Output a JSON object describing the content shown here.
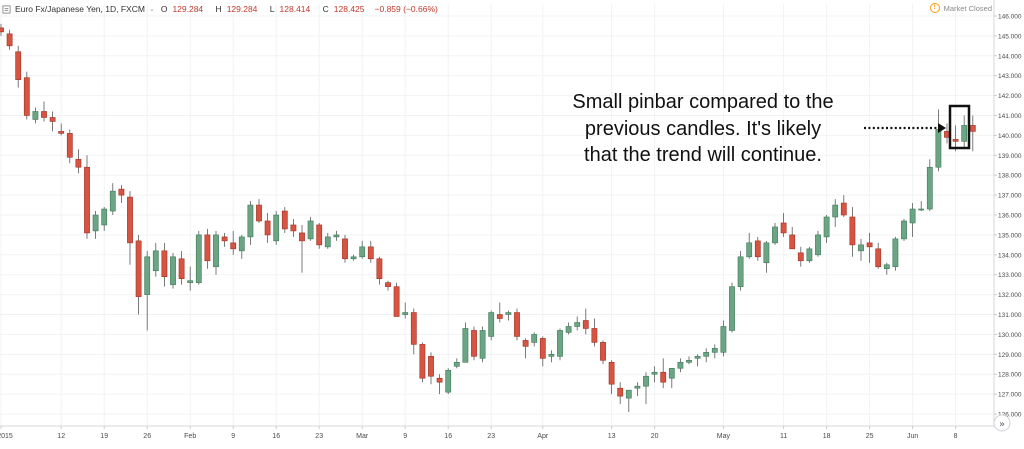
{
  "header": {
    "symbol": "Euro Fx/Japanese Yen, 1D, FXCM",
    "chevron": "⌄",
    "open_label": "O",
    "open": "129.284",
    "high_label": "H",
    "high": "129.284",
    "low_label": "L",
    "low": "128.414",
    "close_label": "C",
    "close": "128.425",
    "change": "−0.859 (−0.66%)"
  },
  "market_status": {
    "icon": "clock-icon",
    "label": "Market Closed"
  },
  "annotation": {
    "lines": [
      "Small pinbar compared to the",
      "previous candles. It's likely",
      "that the trend will continue."
    ]
  },
  "scroll_button": "»",
  "colors": {
    "up": "#6ba583",
    "down": "#d75442",
    "grid": "#f0f3f6",
    "axis_text": "#4a4a4a",
    "annotation": "#111111"
  },
  "chart_data": {
    "type": "candlestick",
    "title": "Euro Fx/Japanese Yen, 1D, FXCM",
    "ylim": [
      125.4,
      146.6
    ],
    "y_ticks": [
      "126.000",
      "127.000",
      "128.000",
      "129.000",
      "130.000",
      "131.000",
      "132.000",
      "133.000",
      "134.000",
      "135.000",
      "136.000",
      "137.000",
      "138.000",
      "139.000",
      "140.000",
      "141.000",
      "142.000",
      "143.000",
      "144.000",
      "145.000",
      "146.000"
    ],
    "x_tick_labels": [
      {
        "label": "2015",
        "i": 0
      },
      {
        "label": "12",
        "i": 7
      },
      {
        "label": "19",
        "i": 12
      },
      {
        "label": "26",
        "i": 17
      },
      {
        "label": "Feb",
        "i": 22
      },
      {
        "label": "9",
        "i": 27
      },
      {
        "label": "16",
        "i": 32
      },
      {
        "label": "23",
        "i": 37
      },
      {
        "label": "Mar",
        "i": 42
      },
      {
        "label": "9",
        "i": 47
      },
      {
        "label": "16",
        "i": 52
      },
      {
        "label": "23",
        "i": 57
      },
      {
        "label": "Apr",
        "i": 63
      },
      {
        "label": "13",
        "i": 71
      },
      {
        "label": "20",
        "i": 76
      },
      {
        "label": "May",
        "i": 84
      },
      {
        "label": "11",
        "i": 91
      },
      {
        "label": "18",
        "i": 96
      },
      {
        "label": "25",
        "i": 101
      },
      {
        "label": "Jun",
        "i": 106
      },
      {
        "label": "8",
        "i": 111
      }
    ],
    "candles": [
      [
        145.4,
        145.6,
        145.0,
        145.2
      ],
      [
        145.1,
        145.3,
        144.3,
        144.5
      ],
      [
        144.2,
        144.5,
        142.4,
        142.8
      ],
      [
        142.9,
        143.2,
        140.8,
        141.0
      ],
      [
        140.8,
        141.4,
        140.6,
        141.2
      ],
      [
        141.2,
        141.7,
        140.7,
        140.9
      ],
      [
        140.9,
        141.2,
        140.2,
        140.7
      ],
      [
        140.2,
        140.6,
        140.0,
        140.1
      ],
      [
        140.1,
        140.3,
        138.6,
        138.9
      ],
      [
        138.8,
        139.3,
        138.1,
        138.4
      ],
      [
        138.4,
        139.0,
        134.8,
        135.1
      ],
      [
        135.2,
        136.2,
        134.8,
        136.0
      ],
      [
        135.5,
        136.4,
        135.2,
        136.3
      ],
      [
        136.2,
        137.6,
        136.0,
        137.2
      ],
      [
        137.3,
        137.5,
        136.6,
        137.0
      ],
      [
        136.9,
        137.2,
        133.5,
        134.6
      ],
      [
        134.7,
        135.0,
        131.0,
        131.9
      ],
      [
        132.0,
        134.2,
        130.2,
        133.9
      ],
      [
        133.2,
        134.6,
        132.9,
        134.2
      ],
      [
        134.2,
        134.6,
        132.4,
        132.9
      ],
      [
        132.5,
        134.1,
        132.3,
        133.9
      ],
      [
        133.8,
        134.2,
        132.5,
        132.8
      ],
      [
        132.6,
        133.4,
        132.2,
        132.7
      ],
      [
        132.6,
        135.2,
        132.5,
        135.0
      ],
      [
        135.0,
        135.3,
        133.3,
        133.7
      ],
      [
        133.4,
        135.2,
        133.0,
        135.0
      ],
      [
        134.9,
        135.1,
        134.4,
        134.7
      ],
      [
        134.6,
        135.2,
        134.0,
        134.3
      ],
      [
        134.2,
        135.0,
        133.8,
        134.9
      ],
      [
        134.9,
        136.7,
        134.5,
        136.5
      ],
      [
        136.5,
        136.8,
        135.6,
        135.7
      ],
      [
        135.7,
        136.1,
        134.6,
        135.0
      ],
      [
        134.7,
        136.2,
        134.5,
        136.0
      ],
      [
        136.2,
        136.4,
        135.1,
        135.3
      ],
      [
        135.5,
        135.8,
        134.9,
        135.2
      ],
      [
        135.1,
        135.5,
        133.1,
        134.7
      ],
      [
        134.8,
        135.9,
        134.7,
        135.7
      ],
      [
        135.5,
        135.6,
        134.3,
        134.5
      ],
      [
        134.4,
        135.1,
        134.3,
        134.9
      ],
      [
        134.9,
        135.2,
        134.7,
        135.0
      ],
      [
        134.8,
        135.0,
        133.6,
        133.8
      ],
      [
        133.8,
        134.0,
        133.7,
        133.9
      ],
      [
        133.9,
        134.7,
        133.8,
        134.4
      ],
      [
        134.4,
        134.7,
        133.6,
        133.8
      ],
      [
        133.8,
        133.9,
        132.5,
        132.8
      ],
      [
        132.6,
        132.7,
        132.2,
        132.4
      ],
      [
        132.4,
        132.6,
        130.9,
        130.9
      ],
      [
        131.0,
        131.6,
        130.8,
        131.1
      ],
      [
        131.1,
        131.3,
        129.0,
        129.5
      ],
      [
        129.5,
        129.6,
        127.6,
        127.8
      ],
      [
        128.9,
        129.1,
        127.5,
        127.9
      ],
      [
        127.8,
        128.0,
        127.0,
        127.6
      ],
      [
        127.1,
        128.3,
        127.0,
        128.2
      ],
      [
        128.4,
        128.8,
        128.3,
        128.6
      ],
      [
        128.6,
        130.6,
        128.6,
        130.3
      ],
      [
        130.2,
        130.4,
        128.7,
        128.9
      ],
      [
        128.8,
        130.4,
        128.6,
        130.2
      ],
      [
        129.9,
        131.2,
        129.7,
        131.1
      ],
      [
        131.0,
        131.6,
        130.6,
        130.8
      ],
      [
        131.0,
        131.2,
        130.7,
        131.1
      ],
      [
        131.1,
        131.3,
        129.7,
        129.9
      ],
      [
        129.7,
        129.8,
        128.8,
        129.4
      ],
      [
        129.6,
        130.1,
        129.4,
        130.0
      ],
      [
        129.8,
        129.9,
        128.4,
        128.8
      ],
      [
        128.9,
        129.2,
        128.6,
        129.0
      ],
      [
        128.9,
        130.3,
        128.7,
        130.2
      ],
      [
        130.1,
        130.6,
        130.0,
        130.4
      ],
      [
        130.4,
        130.9,
        130.2,
        130.6
      ],
      [
        130.7,
        131.3,
        130.0,
        130.3
      ],
      [
        130.3,
        130.8,
        129.4,
        129.6
      ],
      [
        129.6,
        129.7,
        128.5,
        128.7
      ],
      [
        128.6,
        128.7,
        127.0,
        127.5
      ],
      [
        127.3,
        127.6,
        126.5,
        126.9
      ],
      [
        126.8,
        127.2,
        126.1,
        127.2
      ],
      [
        127.3,
        127.6,
        126.9,
        127.4
      ],
      [
        127.4,
        128.1,
        126.5,
        127.9
      ],
      [
        128.0,
        128.4,
        127.6,
        128.1
      ],
      [
        128.1,
        128.8,
        127.3,
        127.6
      ],
      [
        127.8,
        128.3,
        127.3,
        128.3
      ],
      [
        128.3,
        128.8,
        128.1,
        128.6
      ],
      [
        128.6,
        128.9,
        128.5,
        128.7
      ],
      [
        128.8,
        129.0,
        128.4,
        128.9
      ],
      [
        128.9,
        129.3,
        128.6,
        129.1
      ],
      [
        129.1,
        129.5,
        128.8,
        129.3
      ],
      [
        129.1,
        130.7,
        128.9,
        130.4
      ],
      [
        130.2,
        132.6,
        130.1,
        132.4
      ],
      [
        132.4,
        134.2,
        132.2,
        133.9
      ],
      [
        133.9,
        135.1,
        133.8,
        134.6
      ],
      [
        134.7,
        134.9,
        133.7,
        133.9
      ],
      [
        133.6,
        134.7,
        133.1,
        134.6
      ],
      [
        134.6,
        135.6,
        134.5,
        135.4
      ],
      [
        135.6,
        136.1,
        134.9,
        135.1
      ],
      [
        135.0,
        135.4,
        134.3,
        134.3
      ],
      [
        134.1,
        134.4,
        133.4,
        133.7
      ],
      [
        133.7,
        134.4,
        133.6,
        134.3
      ],
      [
        134.0,
        135.2,
        133.9,
        135.0
      ],
      [
        134.9,
        136.0,
        134.6,
        135.9
      ],
      [
        135.9,
        136.8,
        135.4,
        136.5
      ],
      [
        136.6,
        137.0,
        135.9,
        136.0
      ],
      [
        135.9,
        136.4,
        133.9,
        134.5
      ],
      [
        134.2,
        134.8,
        133.7,
        134.5
      ],
      [
        134.6,
        135.1,
        133.6,
        134.4
      ],
      [
        134.3,
        134.6,
        133.3,
        133.4
      ],
      [
        133.3,
        133.6,
        133.0,
        133.5
      ],
      [
        133.4,
        134.9,
        133.2,
        134.8
      ],
      [
        134.8,
        135.8,
        134.7,
        135.7
      ],
      [
        135.6,
        136.6,
        134.9,
        136.3
      ],
      [
        136.3,
        136.7,
        136.2,
        136.3
      ],
      [
        136.3,
        138.8,
        136.2,
        138.4
      ],
      [
        138.4,
        141.3,
        138.2,
        140.3
      ],
      [
        140.2,
        140.6,
        139.6,
        139.9
      ],
      [
        139.8,
        140.5,
        139.2,
        139.7
      ],
      [
        139.7,
        141.0,
        139.4,
        140.5
      ],
      [
        140.5,
        141.0,
        139.2,
        140.2
      ]
    ]
  }
}
